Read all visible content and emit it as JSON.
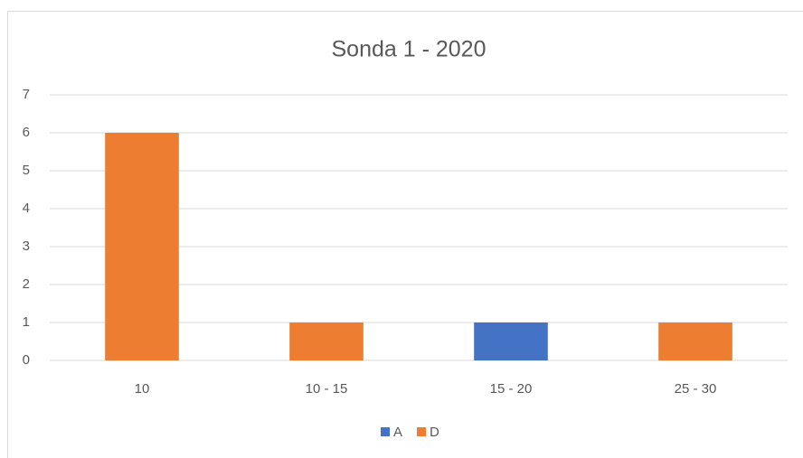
{
  "chart_data": {
    "type": "stacked_bar",
    "title": "Sonda 1 - 2020",
    "categories": [
      "10",
      "10 - 15",
      "15 - 20",
      "25 - 30"
    ],
    "series": [
      {
        "name": "A",
        "color": "#4472c4",
        "values": [
          null,
          null,
          1,
          null
        ]
      },
      {
        "name": "D",
        "color": "#ed7d31",
        "values": [
          6,
          1,
          null,
          1
        ]
      }
    ],
    "ylim": [
      0,
      7
    ],
    "yticks": [
      0,
      1,
      2,
      3,
      4,
      5,
      6,
      7
    ],
    "grid": true,
    "legend": "bottom"
  }
}
